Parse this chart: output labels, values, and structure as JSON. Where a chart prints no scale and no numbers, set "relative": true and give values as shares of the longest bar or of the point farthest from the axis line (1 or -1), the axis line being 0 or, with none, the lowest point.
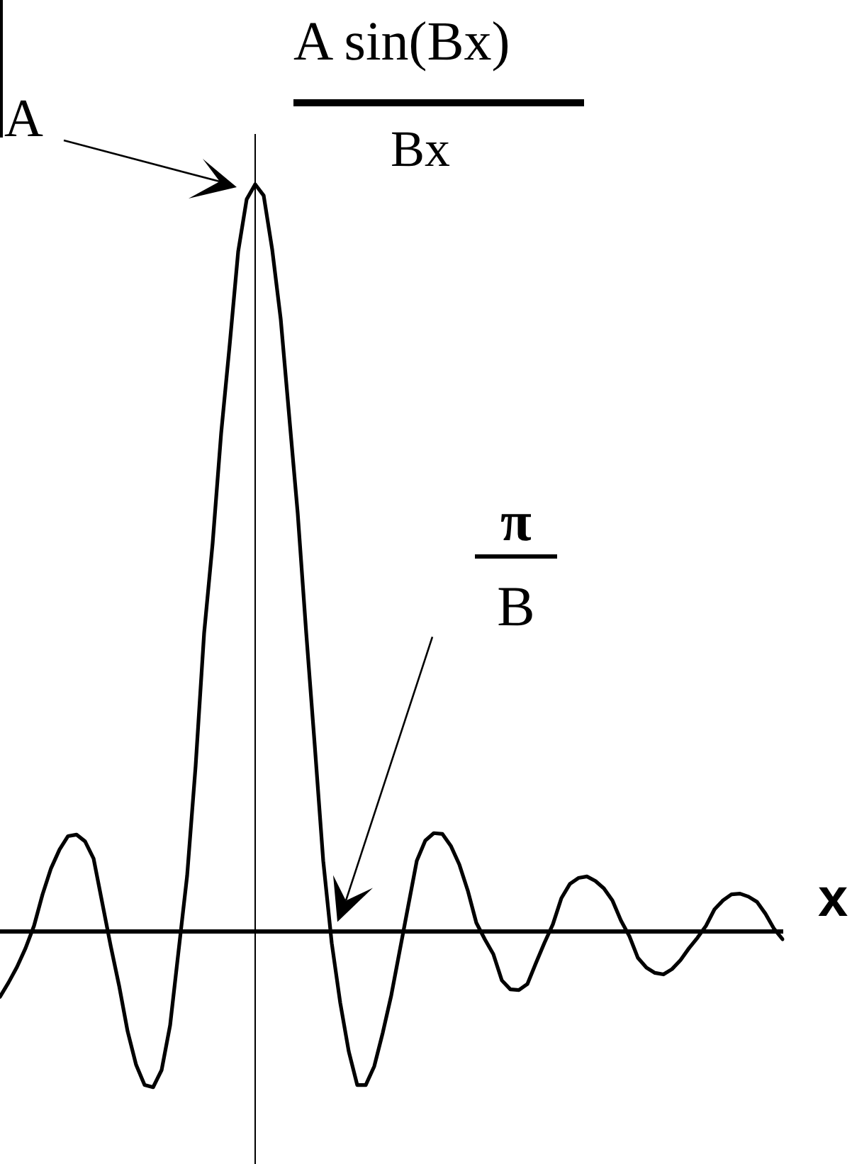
{
  "chart_data": {
    "type": "line",
    "title": "A sin(Bx)\nBx",
    "xlabel": "x",
    "relative": true,
    "tick_labels": false,
    "marker": "none",
    "line_style": "solid",
    "annotations": [
      "A",
      "π\nB"
    ],
    "categories": [
      null,
      null,
      null,
      null,
      null,
      null,
      null,
      null,
      null,
      null,
      null,
      null,
      null,
      null,
      null,
      null,
      null,
      null,
      null,
      null,
      null,
      null,
      null,
      null,
      null,
      null,
      null,
      null,
      null,
      null,
      null,
      null,
      null,
      null,
      null,
      null,
      null,
      null,
      null,
      null,
      null,
      null,
      null,
      null,
      null,
      null,
      null,
      null,
      null,
      null,
      null,
      null,
      null,
      null,
      null,
      null,
      null,
      null,
      null,
      null,
      null,
      null,
      null,
      null,
      null,
      null,
      null,
      null,
      null,
      null,
      null,
      null,
      null,
      null,
      null,
      null,
      null,
      null,
      null,
      null,
      null,
      null,
      null,
      null,
      null,
      null,
      null,
      null,
      null,
      null,
      null,
      null,
      null
    ],
    "series": [
      {
        "color": "#000000",
        "values": [
          -0.087,
          -0.068,
          -0.047,
          -0.022,
          0.008,
          0.05,
          0.085,
          0.11,
          0.128,
          0.13,
          0.121,
          0.098,
          0.04,
          -0.018,
          -0.072,
          -0.133,
          -0.178,
          -0.205,
          -0.208,
          -0.185,
          -0.125,
          -0.025,
          0.075,
          0.222,
          0.4,
          0.52,
          0.667,
          0.785,
          0.91,
          0.98,
          1,
          0.985,
          0.913,
          0.82,
          0.69,
          0.56,
          0.4,
          0.25,
          0.095,
          -0.015,
          -0.095,
          -0.16,
          -0.205,
          -0.205,
          -0.18,
          -0.135,
          -0.085,
          -0.025,
          0.035,
          0.095,
          0.122,
          0.132,
          0.131,
          0.115,
          0.09,
          0.055,
          0.012,
          -0.01,
          -0.03,
          -0.065,
          -0.077,
          -0.078,
          -0.07,
          -0.042,
          -0.015,
          0.01,
          0.045,
          0.064,
          0.072,
          0.074,
          0.068,
          0.058,
          0.042,
          0.015,
          -0.006,
          -0.035,
          -0.048,
          -0.055,
          -0.057,
          -0.05,
          -0.038,
          -0.022,
          -0.008,
          0.008,
          0.03,
          0.042,
          0.05,
          0.051,
          0.047,
          0.04,
          0.024,
          0.004,
          -0.01
        ]
      }
    ]
  }
}
